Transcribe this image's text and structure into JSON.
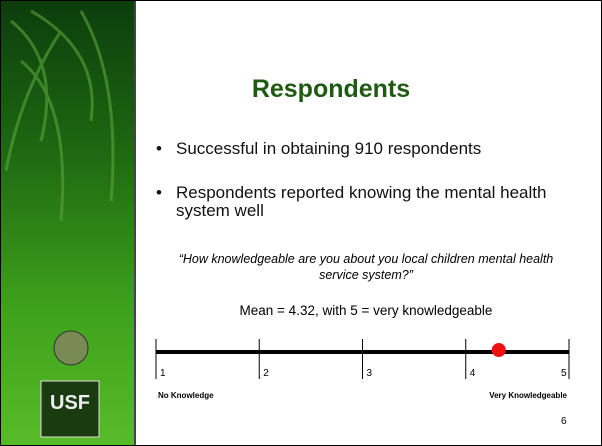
{
  "slide": {
    "title": "Respondents",
    "bullets": [
      "Successful in obtaining 910 respondents",
      "Respondents reported knowing the mental health system well"
    ],
    "question": "“How knowledgeable are you about you local children mental health service system?”",
    "mean_text": "Mean = 4.32, with  5 = very knowledgeable",
    "scale": {
      "min": 1,
      "max": 5,
      "ticks": [
        1,
        2,
        3,
        4,
        5
      ],
      "low_label": "No Knowledge",
      "high_label": "Very Knowledgeable",
      "mean": 4.32,
      "mean_color": "#ee1111"
    },
    "page_number": "6",
    "logo": "USF"
  }
}
